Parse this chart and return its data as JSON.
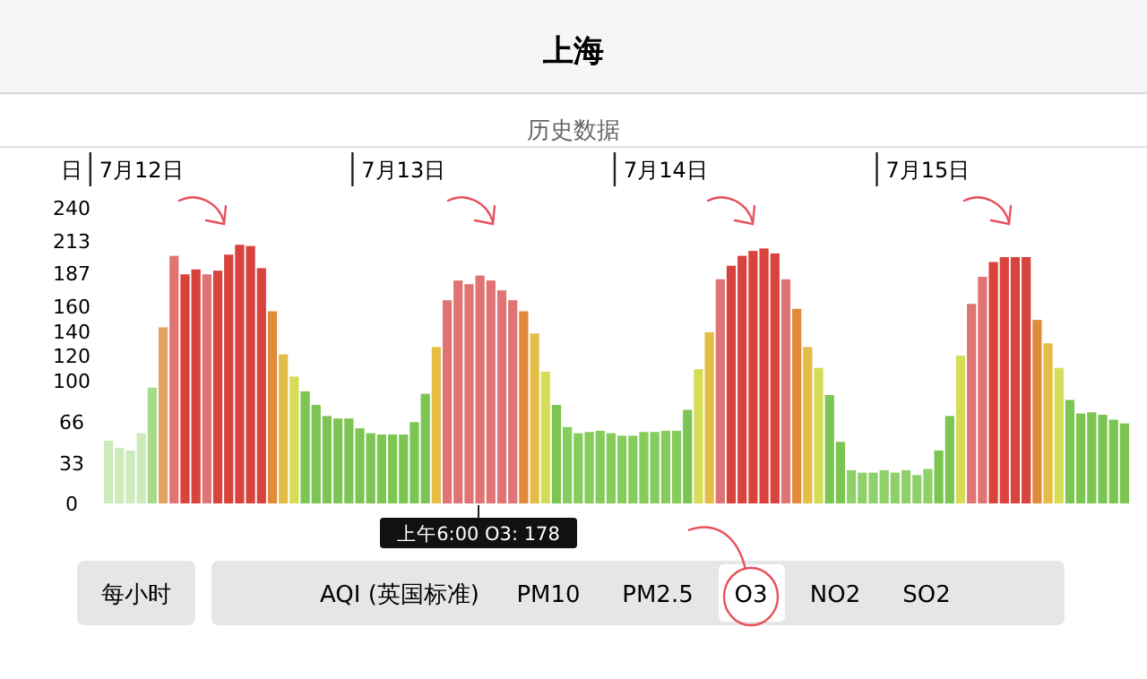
{
  "chart_data": {
    "type": "bar",
    "title": "上海",
    "subtitle": "历史数据",
    "xlabel": "日",
    "categories": [
      null,
      null,
      null,
      "7月12日",
      null,
      null,
      null,
      null,
      null,
      null,
      null,
      null,
      null,
      null,
      null,
      null,
      null,
      null,
      null,
      null,
      null,
      null,
      null,
      null,
      null,
      null,
      null,
      "7月13日",
      null,
      null,
      null,
      null,
      null,
      null,
      null,
      null,
      null,
      null,
      null,
      null,
      null,
      null,
      null,
      null,
      null,
      null,
      null,
      null,
      null,
      null,
      null,
      "7月14日",
      null,
      null,
      null,
      null,
      null,
      null,
      null,
      null,
      null,
      null,
      null,
      null,
      null,
      null,
      null,
      null,
      null,
      null,
      null,
      null,
      null,
      null,
      null,
      "7月15日",
      null,
      null,
      null,
      null,
      null,
      null,
      null,
      null,
      null,
      null,
      null,
      null,
      null,
      null,
      null,
      null,
      null,
      null
    ],
    "values": [
      51,
      45,
      43,
      57,
      94,
      143,
      201,
      186,
      190,
      186,
      189,
      202,
      210,
      209,
      191,
      156,
      121,
      103,
      91,
      80,
      71,
      69,
      69,
      61,
      57,
      56,
      56,
      56,
      66,
      89,
      127,
      165,
      181,
      178,
      185,
      181,
      173,
      165,
      156,
      138,
      107,
      80,
      62,
      57,
      58,
      59,
      57,
      55,
      55,
      58,
      58,
      59,
      59,
      76,
      109,
      139,
      182,
      193,
      201,
      205,
      207,
      203,
      182,
      158,
      127,
      110,
      88,
      50,
      27,
      25,
      25,
      27,
      25,
      27,
      23,
      28,
      43,
      71,
      120,
      162,
      184,
      196,
      200,
      200,
      200,
      149,
      130,
      110,
      84,
      73,
      74,
      72,
      68,
      65
    ],
    "colors": [
      "#cdeabb",
      "#cdeabb",
      "#cdeabb",
      "#cdeabb",
      "#a8da8c",
      "#e4a164",
      "#e07474",
      "#d9433d",
      "#d9433d",
      "#e07474",
      "#d9433d",
      "#d9433d",
      "#d9433d",
      "#d9433d",
      "#d9433d",
      "#e08a3a",
      "#e3bd45",
      "#d5dc55",
      "#7cc552",
      "#7cc552",
      "#7cc552",
      "#7cc552",
      "#7cc552",
      "#7cc552",
      "#7cc552",
      "#7cc552",
      "#7cc552",
      "#7cc552",
      "#7cc552",
      "#7cc552",
      "#e3bd45",
      "#e07474",
      "#e07474",
      "#e07474",
      "#e07474",
      "#e07474",
      "#e07474",
      "#e07474",
      "#e08a3a",
      "#e3bd45",
      "#d5dc55",
      "#7cc552",
      "#85cc5c",
      "#85cc5c",
      "#85cc5c",
      "#85cc5c",
      "#85cc5c",
      "#85cc5c",
      "#85cc5c",
      "#85cc5c",
      "#85cc5c",
      "#85cc5c",
      "#85cc5c",
      "#7cc552",
      "#d5dc55",
      "#e3bd45",
      "#e07474",
      "#d9433d",
      "#d9433d",
      "#d9433d",
      "#d9433d",
      "#d9433d",
      "#e07474",
      "#e08a3a",
      "#e3bd45",
      "#d5dc55",
      "#7cc552",
      "#7cc552",
      "#8fd06a",
      "#8fd06a",
      "#8fd06a",
      "#8fd06a",
      "#8fd06a",
      "#8fd06a",
      "#8fd06a",
      "#8fd06a",
      "#7cc552",
      "#7cc552",
      "#d5dc55",
      "#e07474",
      "#e07474",
      "#d9433d",
      "#d9433d",
      "#d9433d",
      "#d9433d",
      "#e08a3a",
      "#e3bd45",
      "#d5dc55",
      "#7cc552",
      "#7cc552",
      "#7cc552",
      "#7cc552",
      "#7cc552",
      "#7cc552"
    ],
    "ylim": [
      0,
      240
    ],
    "yticks": [
      0,
      33,
      66,
      100,
      120,
      140,
      160,
      187,
      213,
      240
    ],
    "annotations": [
      "上午6:00 O3: 178",
      "每小时",
      "AQI (英国标准)",
      "PM10",
      "PM2.5",
      "O3",
      "NO2",
      "SO2"
    ]
  }
}
